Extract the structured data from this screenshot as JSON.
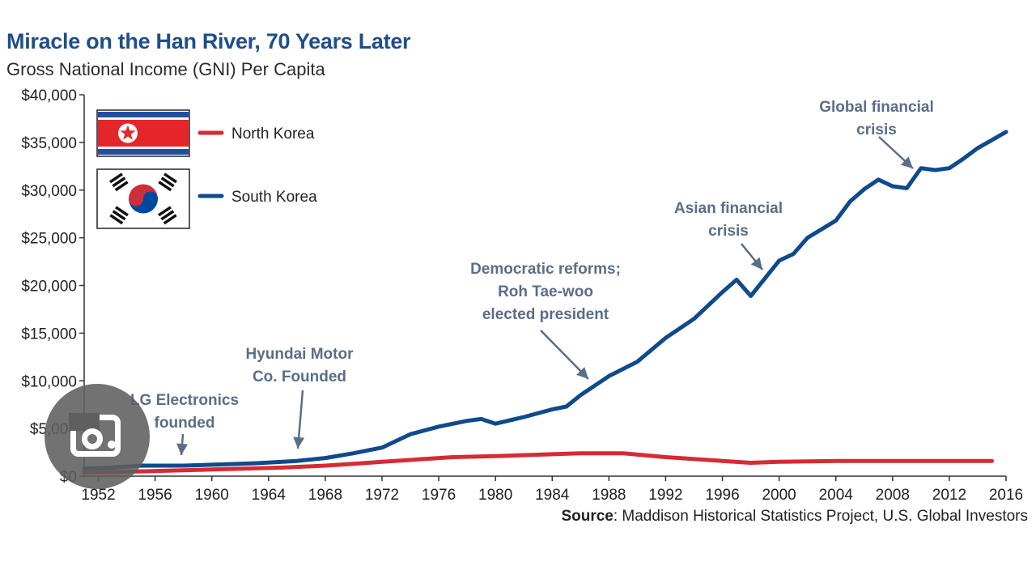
{
  "title": "Miracle on the Han River, 70 Years Later",
  "subtitle": "Gross National Income (GNI) Per Capita",
  "source_label": "Source",
  "source_text": ": Maddison Historical Statistics Project, U.S. Global Investors",
  "colors": {
    "north": "#d62b34",
    "south": "#0f4a8c",
    "annotation": "#5a6e87",
    "title": "#1e4e8c",
    "axis": "#333333"
  },
  "lens_icon": "google-lens-icon",
  "chart_data": {
    "type": "line",
    "title": "Miracle on the Han River, 70 Years Later",
    "ylabel": "",
    "xlabel": "",
    "xlim": [
      1951,
      2016
    ],
    "ylim": [
      0,
      40000
    ],
    "x_ticks": [
      "1952",
      "1956",
      "1960",
      "1964",
      "1968",
      "1972",
      "1976",
      "1980",
      "1984",
      "1988",
      "1992",
      "1996",
      "2000",
      "2004",
      "2008",
      "2012",
      "2016"
    ],
    "y_ticks": [
      "$0",
      "$5,000",
      "$10,000",
      "$15,000",
      "$20,000",
      "$25,000",
      "$30,000",
      "$35,000",
      "$40,000"
    ],
    "legend_position": "top-left",
    "series": [
      {
        "name": "North Korea",
        "color": "#d62b34",
        "x": [
          1951,
          1955,
          1960,
          1965,
          1968,
          1970,
          1972,
          1975,
          1977,
          1980,
          1984,
          1986,
          1989,
          1992,
          1996,
          1998,
          2000,
          2004,
          2008,
          2012,
          2015
        ],
        "y": [
          400,
          500,
          700,
          900,
          1100,
          1300,
          1500,
          1800,
          2000,
          2100,
          2300,
          2400,
          2400,
          2000,
          1600,
          1400,
          1500,
          1600,
          1600,
          1600,
          1600
        ]
      },
      {
        "name": "South Korea",
        "color": "#0f4a8c",
        "x": [
          1951,
          1953,
          1955,
          1958,
          1960,
          1963,
          1965,
          1966,
          1968,
          1970,
          1972,
          1974,
          1976,
          1978,
          1979,
          1980,
          1982,
          1984,
          1985,
          1986,
          1988,
          1990,
          1992,
          1994,
          1996,
          1997,
          1998,
          2000,
          2001,
          2002,
          2004,
          2005,
          2006,
          2007,
          2008,
          2009,
          2010,
          2011,
          2012,
          2013,
          2014,
          2016
        ],
        "y": [
          800,
          900,
          1100,
          1100,
          1200,
          1350,
          1500,
          1600,
          1900,
          2400,
          3000,
          4400,
          5200,
          5800,
          6000,
          5500,
          6200,
          7000,
          7300,
          8500,
          10500,
          12000,
          14500,
          16500,
          19300,
          20600,
          18900,
          22600,
          23300,
          25000,
          26800,
          28800,
          30100,
          31100,
          30400,
          30200,
          32300,
          32100,
          32300,
          33300,
          34400,
          36100
        ]
      }
    ],
    "annotations": [
      {
        "text": "LG Electronics\nfounded",
        "x": 1958,
        "y": 1300
      },
      {
        "text": "Hyundai Motor\nCo. Founded",
        "x": 1966,
        "y": 1600
      },
      {
        "text": "Democratic reforms;\nRoh Tae-woo\nelected president",
        "x": 1987,
        "y": 9500
      },
      {
        "text": "Asian financial\ncrisis",
        "x": 1998.5,
        "y": 20000
      },
      {
        "text": "Global financial\ncrisis",
        "x": 2009.5,
        "y": 31000
      }
    ]
  }
}
